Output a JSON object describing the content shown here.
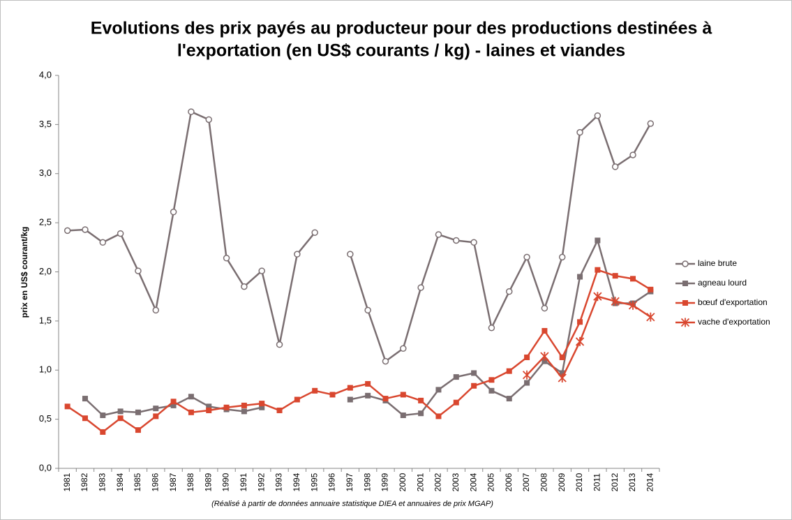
{
  "chart_data": {
    "type": "line",
    "title": [
      "Evolutions des prix payés au producteur pour des productions destinées à",
      "l'exportation (en US$ courants / kg) - laines et viandes"
    ],
    "y_label": "prix en US$ courant/kg",
    "source": "(Réalisé à partir de données annuaire statistique DIEA et annuaires de prix MGAP)",
    "categories": [
      "1981",
      "1982",
      "1983",
      "1984",
      "1985",
      "1986",
      "1987",
      "1988",
      "1989",
      "1990",
      "1991",
      "1992",
      "1993",
      "1994",
      "1995",
      "1996",
      "1997",
      "1998",
      "1999",
      "2000",
      "2001",
      "2002",
      "2003",
      "2004",
      "2005",
      "2006",
      "2007",
      "2008",
      "2009",
      "2010",
      "2011",
      "2012",
      "2013",
      "2014"
    ],
    "ylim": [
      0,
      4
    ],
    "yticks": [
      {
        "value": 0,
        "label": "0,0"
      },
      {
        "value": 0.5,
        "label": "0,5"
      },
      {
        "value": 1,
        "label": "1,0"
      },
      {
        "value": 1.5,
        "label": "1,5"
      },
      {
        "value": 2,
        "label": "2,0"
      },
      {
        "value": 2.5,
        "label": "2,5"
      },
      {
        "value": 3,
        "label": "3,0"
      },
      {
        "value": 3.5,
        "label": "3,5"
      },
      {
        "value": 4,
        "label": "4,0"
      }
    ],
    "grid": false,
    "legend": "right",
    "series": [
      {
        "name": "laine brute",
        "color": "#7a6e71",
        "marker": "circle",
        "values": [
          2.42,
          2.43,
          2.3,
          2.39,
          2.01,
          1.61,
          2.61,
          3.63,
          3.55,
          2.14,
          1.85,
          2.01,
          1.26,
          2.18,
          2.4,
          null,
          2.18,
          1.61,
          1.09,
          1.22,
          1.84,
          2.38,
          2.32,
          2.3,
          1.43,
          1.8,
          2.15,
          1.63,
          2.15,
          3.42,
          3.59,
          3.07,
          3.19,
          3.51
        ]
      },
      {
        "name": "agneau lourd",
        "color": "#7a6e71",
        "marker": "square",
        "values": [
          null,
          0.71,
          0.54,
          0.58,
          0.57,
          0.61,
          0.64,
          0.73,
          0.63,
          0.6,
          0.58,
          0.62,
          null,
          null,
          null,
          null,
          0.7,
          0.74,
          0.69,
          0.54,
          0.56,
          0.8,
          0.93,
          0.97,
          0.79,
          0.71,
          0.87,
          1.09,
          0.97,
          1.95,
          2.32,
          1.68,
          1.68,
          1.8
        ]
      },
      {
        "name": "bœuf d'exportation",
        "color": "#d9472f",
        "marker": "square",
        "values": [
          0.63,
          0.51,
          0.37,
          0.51,
          0.39,
          0.53,
          0.68,
          0.57,
          0.59,
          0.62,
          0.64,
          0.66,
          0.59,
          0.7,
          0.79,
          0.75,
          0.82,
          0.86,
          0.71,
          0.75,
          0.69,
          0.53,
          0.67,
          0.84,
          0.9,
          0.99,
          1.13,
          1.4,
          1.13,
          1.49,
          2.02,
          1.96,
          1.93,
          1.82
        ]
      },
      {
        "name": "vache d'exportation",
        "color": "#d9472f",
        "marker": "star",
        "values": [
          null,
          null,
          null,
          null,
          null,
          null,
          null,
          null,
          null,
          null,
          null,
          null,
          null,
          null,
          null,
          null,
          null,
          null,
          null,
          null,
          null,
          null,
          null,
          null,
          null,
          null,
          0.95,
          1.14,
          0.92,
          1.29,
          1.75,
          1.7,
          1.66,
          1.54
        ]
      }
    ]
  }
}
